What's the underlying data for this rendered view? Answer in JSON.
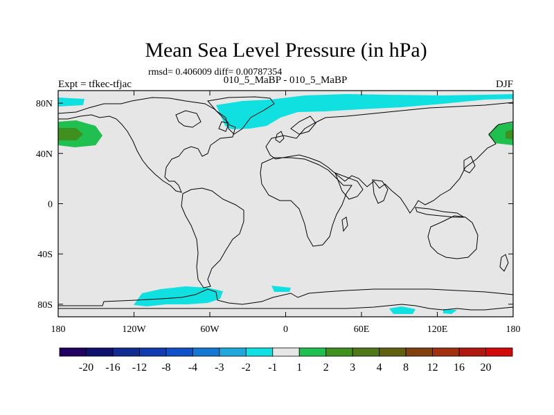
{
  "title": "Mean Sea Level Pressure (in hPa)",
  "stats_line": "rmsd= 0.406009 diff= 0.00787354",
  "experiment_label": "Expt = tfkec-tfjac",
  "comparison_label": "010_5_MaBP - 010_5_MaBP",
  "season_label": "DJF",
  "map": {
    "lon_range": [
      -180,
      180
    ],
    "lat_range": [
      -90,
      90
    ],
    "ocean_color": "#e6e6e6",
    "coastline_color": "#000000",
    "x_ticks": [
      {
        "lon": -180,
        "label": "180"
      },
      {
        "lon": -120,
        "label": "120W"
      },
      {
        "lon": -60,
        "label": "60W"
      },
      {
        "lon": 0,
        "label": "0"
      },
      {
        "lon": 60,
        "label": "60E"
      },
      {
        "lon": 120,
        "label": "120E"
      },
      {
        "lon": 180,
        "label": "180"
      }
    ],
    "y_ticks": [
      {
        "lat": 80,
        "label": "80N"
      },
      {
        "lat": 40,
        "label": "40N"
      },
      {
        "lat": 0,
        "label": "0"
      },
      {
        "lat": -40,
        "label": "40S"
      },
      {
        "lat": -80,
        "label": "80S"
      }
    ]
  },
  "colorbar": {
    "colors": [
      "#200060",
      "#10106e",
      "#102c90",
      "#103cb0",
      "#1050c8",
      "#1478d2",
      "#20a8dc",
      "#10e0e0",
      "#e6e6e6",
      "#20c050",
      "#409020",
      "#507818",
      "#606010",
      "#804010",
      "#a03010",
      "#b01810",
      "#d00a0a"
    ],
    "labels": [
      "-20",
      "-16",
      "-12",
      "-8",
      "-4",
      "-3",
      "-2",
      "-1",
      "1",
      "2",
      "3",
      "4",
      "8",
      "12",
      "16",
      "20"
    ]
  }
}
